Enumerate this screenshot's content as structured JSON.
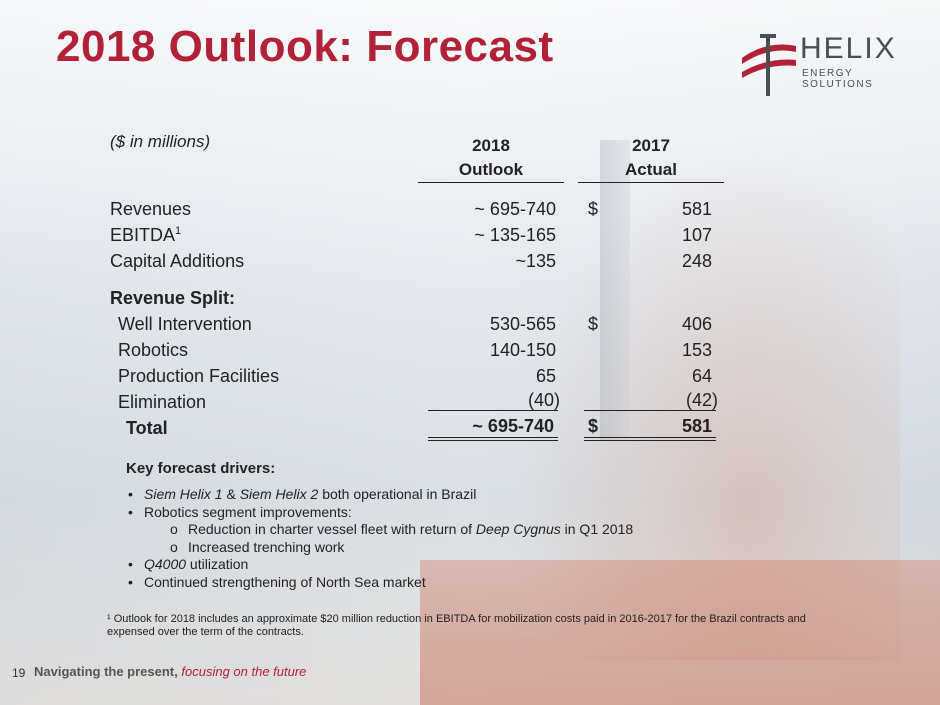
{
  "title": "2018 Outlook: Forecast",
  "logo": {
    "word": "HELIX",
    "sub": "ENERGY SOLUTIONS",
    "color_red": "#b2213a",
    "color_gray": "#4a4f55"
  },
  "table": {
    "units": "($ in millions)",
    "col1": {
      "year": "2018",
      "label": "Outlook"
    },
    "col2": {
      "year": "2017",
      "label": "Actual"
    },
    "rows": [
      {
        "label": "Revenues",
        "outlook": "~ 695-740",
        "dollar": "$",
        "actual": "581"
      },
      {
        "label": "EBITDA",
        "sup": "1",
        "outlook": "~ 135-165",
        "dollar": "",
        "actual": "107"
      },
      {
        "label": "Capital Additions",
        "outlook": "~135",
        "dollar": "",
        "actual": "248"
      }
    ],
    "split_title": "Revenue Split:",
    "split_rows": [
      {
        "label": "Well Intervention",
        "outlook": "530-565",
        "dollar": "$",
        "actual": "406"
      },
      {
        "label": "Robotics",
        "outlook": "140-150",
        "dollar": "",
        "actual": "153"
      },
      {
        "label": "Production Facilities",
        "outlook": "65",
        "dollar": "",
        "actual": "64"
      },
      {
        "label": "Elimination",
        "outlook": "(40)",
        "dollar": "",
        "actual": "(42)"
      }
    ],
    "total": {
      "label": "Total",
      "outlook": "~ 695-740",
      "dollar": "$",
      "actual": "581"
    }
  },
  "drivers": {
    "title": "Key forecast drivers:",
    "b1": {
      "i1": "Siem Helix 1",
      "amp": " & ",
      "i2": "Siem Helix 2",
      "rest": " both operational in Brazil"
    },
    "b2": "Robotics segment improvements:",
    "b2a": {
      "pre": "Reduction in charter vessel fleet with return of ",
      "ital": "Deep Cygnus",
      "post": " in Q1 2018"
    },
    "b2b": "Increased trenching work",
    "b3": {
      "ital": "Q4000",
      "rest": " utilization"
    },
    "b4": "Continued strengthening of North Sea market"
  },
  "footnote": "¹ Outlook for 2018 includes an approximate $20 million reduction in EBITDA for mobilization costs paid in 2016-2017 for the Brazil contracts and expensed over the term of the contracts.",
  "footer": {
    "page": "19",
    "tag_main": "Navigating the present, ",
    "tag_accent": "focusing on the future"
  }
}
